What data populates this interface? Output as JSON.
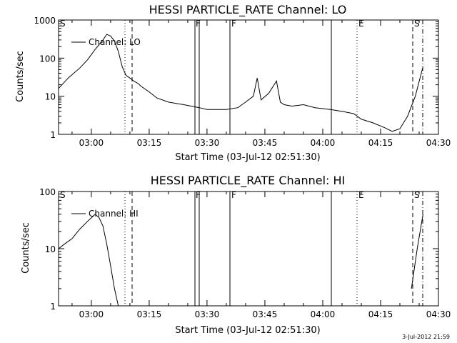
{
  "chart_data": [
    {
      "type": "line",
      "title": "HESSI PARTICLE_RATE Channel: LO",
      "xlabel": "Start Time (03-Jul-12 02:51:30)",
      "ylabel": "Counts/sec",
      "yscale": "log",
      "xlim": [
        "02:51:30",
        "04:30:00"
      ],
      "ylim": [
        1,
        1000
      ],
      "x_ticks": [
        "03:00",
        "03:15",
        "03:30",
        "03:45",
        "04:00",
        "04:15",
        "04:30"
      ],
      "y_ticks": [
        "1",
        "10",
        "100",
        "1000"
      ],
      "legend": {
        "label": "Channel: LO",
        "position": "top-left"
      },
      "marker_labels": [
        "S",
        "F",
        "F",
        "E",
        "S"
      ],
      "series": [
        {
          "name": "Channel: LO",
          "x": [
            "02:51:30",
            "02:54:00",
            "02:57:00",
            "02:59:00",
            "03:01:00",
            "03:03:00",
            "03:04:00",
            "03:05:00",
            "03:06:00",
            "03:07:00",
            "03:08:00",
            "03:09:00",
            "03:10:00",
            "03:11:00",
            "03:12:00",
            "03:13:00",
            "03:15:00",
            "03:17:00",
            "03:20:00",
            "03:24:00",
            "03:28:00",
            "03:30:00",
            "03:35:00",
            "03:38:00",
            "03:40:00",
            "03:42:00",
            "03:43:00",
            "03:44:00",
            "03:46:00",
            "03:48:00",
            "03:49:00",
            "03:50:00",
            "03:52:00",
            "03:55:00",
            "03:58:00",
            "04:02:00",
            "04:05:00",
            "04:08:00",
            "04:10:00",
            "04:13:00",
            "04:16:00",
            "04:18:00",
            "04:20:00",
            "04:22:00",
            "04:24:00",
            "04:26:00"
          ],
          "y": [
            16,
            30,
            55,
            90,
            170,
            300,
            420,
            380,
            280,
            150,
            60,
            35,
            30,
            25,
            22,
            18,
            13,
            9,
            7,
            6,
            5,
            4.5,
            4.5,
            5,
            7,
            10,
            30,
            8,
            12,
            25,
            7,
            6,
            5.5,
            6,
            5,
            4.5,
            4,
            3.5,
            2.5,
            2,
            1.5,
            1.2,
            1.4,
            3,
            10,
            60
          ]
        }
      ]
    },
    {
      "type": "line",
      "title": "HESSI PARTICLE_RATE Channel: HI",
      "xlabel": "Start Time (03-Jul-12 02:51:30)",
      "ylabel": "Counts/sec",
      "yscale": "log",
      "xlim": [
        "02:51:30",
        "04:30:00"
      ],
      "ylim": [
        1,
        100
      ],
      "x_ticks": [
        "03:00",
        "03:15",
        "03:30",
        "03:45",
        "04:00",
        "04:15",
        "04:30"
      ],
      "y_ticks": [
        "1",
        "10",
        "100"
      ],
      "legend": {
        "label": "Channel: HI",
        "position": "top-left"
      },
      "marker_labels": [
        "S",
        "F",
        "F",
        "E",
        "S"
      ],
      "series": [
        {
          "name": "Channel: HI",
          "segments": [
            {
              "x": [
                "02:51:30",
                "02:53:00",
                "02:55:00",
                "02:57:00",
                "02:59:00",
                "03:01:00",
                "03:02:00",
                "03:03:00",
                "03:04:00",
                "03:05:00",
                "03:06:00",
                "03:07:00"
              ],
              "y": [
                10,
                12,
                15,
                22,
                30,
                40,
                35,
                25,
                12,
                5,
                2,
                1
              ]
            },
            {
              "x": [
                "04:23:00",
                "04:24:30",
                "04:26:00"
              ],
              "y": [
                2,
                10,
                40
              ]
            }
          ]
        }
      ]
    }
  ],
  "footer": {
    "timestamp": "3-Jul-2012 21:59"
  }
}
